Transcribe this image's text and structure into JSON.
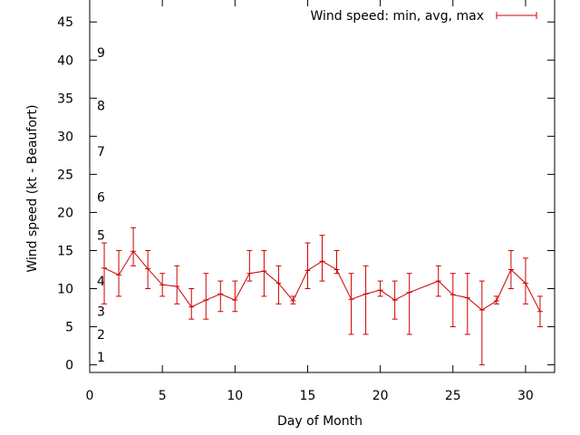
{
  "chart_data": {
    "type": "line",
    "title": "",
    "xlabel": "Day of Month",
    "ylabel": "Wind speed (kt - Beaufort)",
    "xlim": [
      0,
      32
    ],
    "ylim": [
      -1,
      48
    ],
    "xticks": [
      0,
      5,
      10,
      15,
      20,
      25,
      30
    ],
    "yticks": [
      0,
      5,
      10,
      15,
      20,
      25,
      30,
      35,
      40,
      45
    ],
    "grid": false,
    "legend_position": "top-right",
    "series_color": "#cc0000",
    "beaufort_labels": [
      {
        "label": "1",
        "y": 1
      },
      {
        "label": "2",
        "y": 4
      },
      {
        "label": "3",
        "y": 7
      },
      {
        "label": "4",
        "y": 11
      },
      {
        "label": "5",
        "y": 17
      },
      {
        "label": "6",
        "y": 22
      },
      {
        "label": "7",
        "y": 28
      },
      {
        "label": "8",
        "y": 34
      },
      {
        "label": "9",
        "y": 41
      }
    ],
    "series": [
      {
        "name": "Wind speed: min, avg, max",
        "x": [
          1,
          2,
          3,
          4,
          5,
          6,
          7,
          8,
          9,
          10,
          11,
          12,
          13,
          14,
          15,
          16,
          17,
          18,
          19,
          20,
          21,
          22,
          24,
          25,
          26,
          27,
          28,
          29,
          30,
          31
        ],
        "avg": [
          12.7,
          11.8,
          14.9,
          12.6,
          10.5,
          10.3,
          7.6,
          8.5,
          9.3,
          8.5,
          12.0,
          12.3,
          10.7,
          8.4,
          12.4,
          13.6,
          12.5,
          8.6,
          9.3,
          9.8,
          8.5,
          9.5,
          11.0,
          9.2,
          8.8,
          7.2,
          8.4,
          12.5,
          10.7,
          7.0
        ],
        "min": [
          8,
          9,
          13,
          10,
          9,
          8,
          6,
          6,
          7,
          7,
          11,
          9,
          8,
          8,
          10,
          11,
          12,
          4,
          4,
          9,
          6,
          4,
          9,
          5,
          4,
          0,
          8,
          10,
          8,
          5
        ],
        "max": [
          16,
          15,
          18,
          15,
          12,
          13,
          10,
          12,
          11,
          11,
          15,
          15,
          13,
          9,
          16,
          17,
          15,
          12,
          13,
          11,
          11,
          12,
          13,
          12,
          12,
          11,
          9,
          15,
          14,
          9
        ]
      }
    ]
  }
}
